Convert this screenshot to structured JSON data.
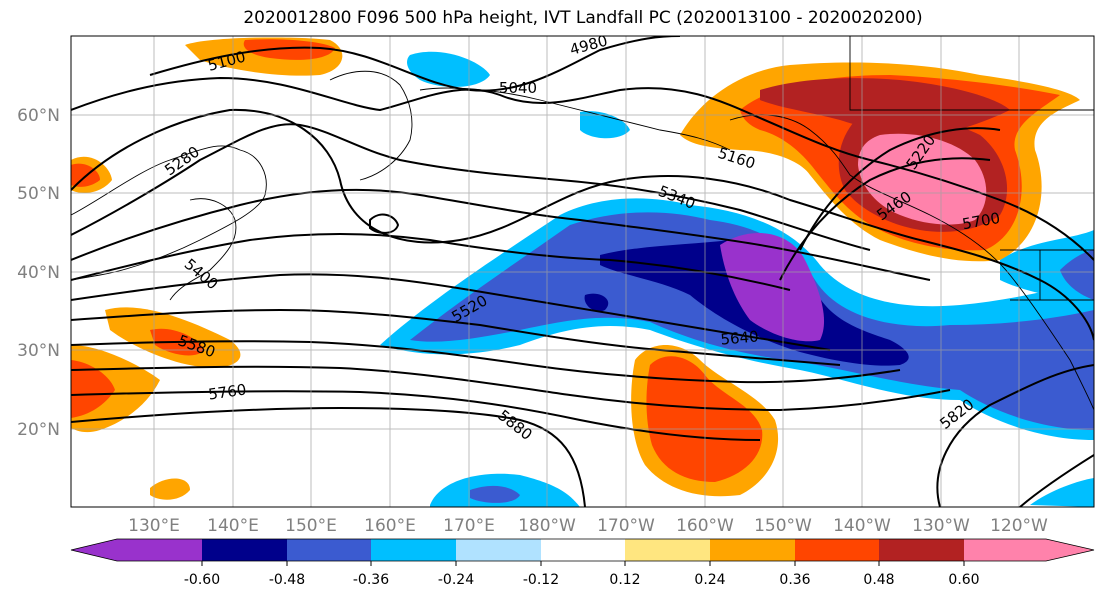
{
  "title": "2020012800 F096 500 hPa height, IVT Landfall PC (2020013100 - 2020020200)",
  "map": {
    "lat_labels": [
      "60°N",
      "50°N",
      "40°N",
      "30°N",
      "20°N"
    ],
    "lon_labels": [
      "130°E",
      "140°E",
      "150°E",
      "160°E",
      "170°E",
      "180°W",
      "170°W",
      "160°W",
      "150°W",
      "140°W",
      "130°W",
      "120°W"
    ],
    "contour_labels": [
      "5100",
      "4980",
      "5040",
      "5280",
      "5160",
      "5340",
      "5400",
      "5520",
      "5580",
      "5640",
      "5760",
      "5880",
      "5820",
      "5460",
      "5700",
      "5220"
    ]
  },
  "colorbar": {
    "tick_labels": [
      "-0.60",
      "-0.48",
      "-0.36",
      "-0.24",
      "-0.12",
      "0.12",
      "0.24",
      "0.36",
      "0.48",
      "0.60"
    ],
    "colors": [
      "#9932cc",
      "#00008b",
      "#3b5bd0",
      "#00bfff",
      "#b0e2ff",
      "#ffffff",
      "#ffe680",
      "#ffa500",
      "#ff4500",
      "#b22222",
      "#ff82ab"
    ]
  }
}
